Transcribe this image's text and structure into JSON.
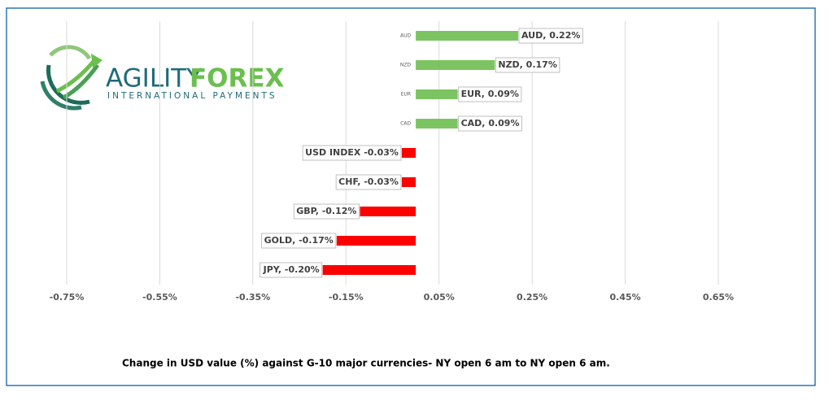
{
  "logo": {
    "brand_1": "AGILITY",
    "brand_2": "FOREX",
    "tagline": "INTERNATIONAL PAYMENTS"
  },
  "chart_data": {
    "type": "bar",
    "orientation": "horizontal",
    "caption": "Change in  USD value (%)  against  G-10 major currencies- NY open 6 am to NY open 6 am.",
    "categories": [
      "AUD",
      "NZD",
      "EUR",
      "CAD",
      null,
      null,
      null,
      null,
      null
    ],
    "values": [
      0.22,
      0.17,
      0.09,
      0.09,
      -0.03,
      -0.03,
      -0.12,
      -0.17,
      -0.2
    ],
    "value_labels": [
      "AUD, 0.22%",
      "NZD, 0.17%",
      "EUR, 0.09%",
      "CAD, 0.09%",
      "USD INDEX -0.03%",
      "CHF, -0.03%",
      "GBP, -0.12%",
      "GOLD, -0.17%",
      "JPY, -0.20%"
    ],
    "positive_color": "#7cc462",
    "negative_color": "#ff0000",
    "xlim": [
      -0.75,
      0.65
    ],
    "xticks": [
      {
        "value": -0.75,
        "label": "-0.75%"
      },
      {
        "value": -0.55,
        "label": "-0.55%"
      },
      {
        "value": -0.35,
        "label": "-0.35%"
      },
      {
        "value": -0.15,
        "label": "-0.15%"
      },
      {
        "value": 0.05,
        "label": "0.05%"
      },
      {
        "value": 0.25,
        "label": "0.25%"
      },
      {
        "value": 0.45,
        "label": "0.45%"
      },
      {
        "value": 0.65,
        "label": "0.65%"
      }
    ],
    "grid": true
  }
}
